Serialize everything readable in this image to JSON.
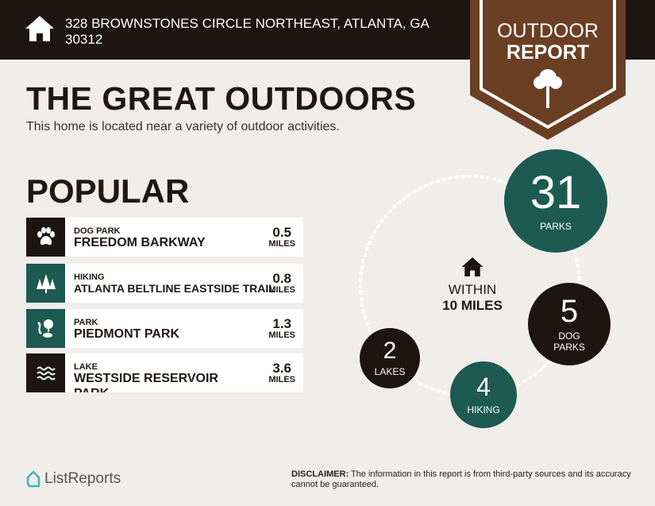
{
  "header": {
    "address": "328 BROWNSTONES CIRCLE NORTHEAST, ATLANTA, GA 30312",
    "badge_line1": "OUTDOOR",
    "badge_line2": "REPORT"
  },
  "main": {
    "title": "THE GREAT OUTDOORS",
    "subtitle": "This home is located near a variety of outdoor activities.",
    "popular_heading": "POPULAR"
  },
  "popular": [
    {
      "category": "DOG PARK",
      "name": "FREEDOM BARKWAY",
      "distance": "0.5",
      "unit": "MILES",
      "icon": "paw-icon",
      "color": "#1e1512"
    },
    {
      "category": "HIKING",
      "name": "ATLANTA BELTLINE EASTSIDE TRAIL",
      "distance": "0.8",
      "unit": "MILES",
      "icon": "trees-icon",
      "color": "#1d5a52"
    },
    {
      "category": "PARK",
      "name": "PIEDMONT PARK",
      "distance": "1.3",
      "unit": "MILES",
      "icon": "park-icon",
      "color": "#1d5a52"
    },
    {
      "category": "LAKE",
      "name": "WESTSIDE RESERVOIR PARK",
      "distance": "3.6",
      "unit": "MILES",
      "icon": "waves-icon",
      "color": "#1e1512"
    }
  ],
  "summary": {
    "center_line1": "WITHIN",
    "center_line2": "10 MILES",
    "parks": {
      "count": "31",
      "label": "PARKS"
    },
    "dog_parks": {
      "count": "5",
      "label1": "DOG",
      "label2": "PARKS"
    },
    "hiking": {
      "count": "4",
      "label": "HIKING"
    },
    "lakes": {
      "count": "2",
      "label": "LAKES"
    }
  },
  "footer": {
    "logo": "ListReports",
    "disclaimer_label": "DISCLAIMER:",
    "disclaimer_text": " The information in this report is from third-party sources and its accuracy cannot be guaranteed."
  },
  "colors": {
    "dark": "#1e1512",
    "teal": "#1d5a52",
    "brown": "#6b3f24",
    "background": "#f0edea"
  }
}
